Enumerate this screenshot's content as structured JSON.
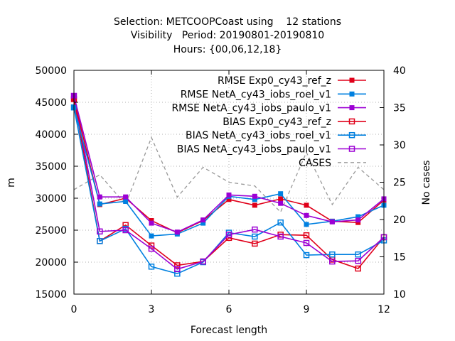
{
  "chart_data": {
    "type": "line",
    "title_lines": [
      "Selection: METCOOPCoast using    12 stations",
      "Visibility   Period: 20190801-20190810",
      "Hours: {00,06,12,18}"
    ],
    "xlabel": "Forecast length",
    "ylabel": "m",
    "y2label": "No cases",
    "xlim": [
      0,
      12
    ],
    "ylim": [
      15000,
      50000
    ],
    "y2lim": [
      10,
      40
    ],
    "xticks": [
      0,
      3,
      6,
      9,
      12
    ],
    "yticks": [
      15000,
      20000,
      25000,
      30000,
      35000,
      40000,
      45000,
      50000
    ],
    "y2ticks": [
      10,
      15,
      20,
      25,
      30,
      35,
      40
    ],
    "grid": true,
    "legend_position": "top-right",
    "x": [
      0,
      1,
      2,
      3,
      4,
      5,
      6,
      7,
      8,
      9,
      10,
      11,
      12
    ],
    "series": [
      {
        "name": "RMSE Exp0_cy43_ref_z",
        "color": "#e0001a",
        "marker": "filled-square",
        "axis": "y",
        "values": [
          45500,
          29000,
          30000,
          26500,
          24600,
          26500,
          29800,
          28900,
          29900,
          28900,
          26400,
          26200,
          29700
        ]
      },
      {
        "name": "RMSE NetA_cy43_iobs_roel_v1",
        "color": "#0080e0",
        "marker": "filled-square",
        "axis": "y",
        "values": [
          44200,
          29100,
          29500,
          24100,
          24400,
          26100,
          30300,
          29800,
          30700,
          25900,
          26400,
          27100,
          28900
        ]
      },
      {
        "name": "RMSE NetA_cy43_iobs_paulo_v1",
        "color": "#9c00d4",
        "marker": "filled-square",
        "axis": "y",
        "values": [
          46000,
          30200,
          30200,
          26100,
          24700,
          26600,
          30500,
          30300,
          29200,
          27300,
          26300,
          26600,
          29900
        ]
      },
      {
        "name": "BIAS Exp0_cy43_ref_z",
        "color": "#e0001a",
        "marker": "open-square",
        "axis": "y",
        "values": [
          45500,
          23300,
          25800,
          22600,
          19500,
          20100,
          23800,
          22900,
          24300,
          24200,
          20400,
          19000,
          23900
        ]
      },
      {
        "name": "BIAS NetA_cy43_iobs_roel_v1",
        "color": "#0080e0",
        "marker": "open-square",
        "axis": "y",
        "values": [
          44200,
          23300,
          25200,
          19300,
          18200,
          20000,
          24600,
          24000,
          26200,
          21100,
          21200,
          21200,
          23400
        ]
      },
      {
        "name": "BIAS NetA_cy43_iobs_paulo_v1",
        "color": "#9c00d4",
        "marker": "open-square",
        "axis": "y",
        "values": [
          46000,
          24800,
          25000,
          22100,
          18900,
          20100,
          24300,
          25100,
          24000,
          23000,
          20100,
          20200,
          23900
        ]
      },
      {
        "name": "CASES",
        "color": "#999999",
        "marker": "none",
        "dash": true,
        "axis": "y2",
        "values": [
          24,
          26,
          22,
          31,
          23,
          27,
          25,
          24.5,
          21,
          29,
          22,
          27,
          24
        ]
      }
    ]
  }
}
